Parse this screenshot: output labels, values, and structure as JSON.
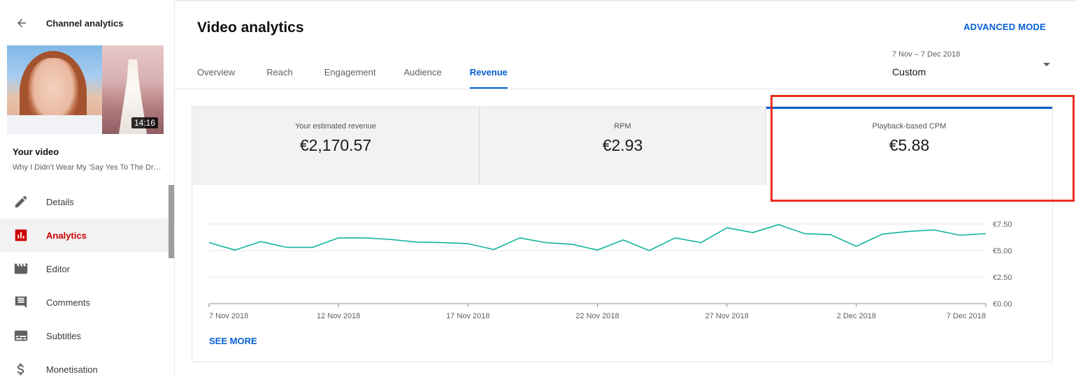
{
  "sidebar": {
    "title": "Channel analytics",
    "thumbnail_duration": "14:16",
    "your_video_label": "Your video",
    "video_title": "Why I Didn't Wear My 'Say Yes To The Dress' Dress",
    "items": [
      {
        "label": "Details",
        "icon": "pencil-icon"
      },
      {
        "label": "Analytics",
        "icon": "analytics-icon",
        "active": true
      },
      {
        "label": "Editor",
        "icon": "clapper-icon"
      },
      {
        "label": "Comments",
        "icon": "comment-icon"
      },
      {
        "label": "Subtitles",
        "icon": "subtitles-icon"
      },
      {
        "label": "Monetisation",
        "icon": "dollar-icon"
      }
    ]
  },
  "header": {
    "title": "Video analytics",
    "advanced_mode": "ADVANCED MODE",
    "tabs": [
      {
        "label": "Overview"
      },
      {
        "label": "Reach"
      },
      {
        "label": "Engagement"
      },
      {
        "label": "Audience"
      },
      {
        "label": "Revenue",
        "active": true
      }
    ],
    "date_range": "7 Nov – 7 Dec 2018",
    "date_value": "Custom"
  },
  "metrics": [
    {
      "label": "Your estimated revenue",
      "value": "€2,170.57"
    },
    {
      "label": "RPM",
      "value": "€2.93"
    },
    {
      "label": "Playback-based CPM",
      "value": "€5.88",
      "selected": true
    }
  ],
  "colors": {
    "accent": "#065fd4",
    "line": "#12b59c",
    "highlight": "#e8301f",
    "active_nav": "#cc0000"
  },
  "chart_data": {
    "type": "line",
    "title": "",
    "x": [
      "7 Nov",
      "8 Nov",
      "9 Nov",
      "10 Nov",
      "11 Nov",
      "12 Nov",
      "13 Nov",
      "14 Nov",
      "15 Nov",
      "16 Nov",
      "17 Nov",
      "18 Nov",
      "19 Nov",
      "20 Nov",
      "21 Nov",
      "22 Nov",
      "23 Nov",
      "24 Nov",
      "25 Nov",
      "26 Nov",
      "27 Nov",
      "28 Nov",
      "29 Nov",
      "30 Nov",
      "1 Dec",
      "2 Dec",
      "3 Dec",
      "4 Dec",
      "5 Dec",
      "6 Dec",
      "7 Dec"
    ],
    "series": [
      {
        "values": [
          5.75,
          5.05,
          5.85,
          5.3,
          5.3,
          6.2,
          6.2,
          6.05,
          5.8,
          5.75,
          5.65,
          5.1,
          6.2,
          5.75,
          5.6,
          5.05,
          6.0,
          5.0,
          6.2,
          5.75,
          7.15,
          6.7,
          7.45,
          6.6,
          6.5,
          5.4,
          6.55,
          6.8,
          6.95,
          6.45,
          6.6
        ]
      }
    ],
    "xtick_labels": [
      "7 Nov 2018",
      "12 Nov 2018",
      "17 Nov 2018",
      "22 Nov 2018",
      "27 Nov 2018",
      "2 Dec 2018",
      "7 Dec 2018"
    ],
    "xtick_index": [
      0,
      5,
      10,
      15,
      20,
      25,
      30
    ],
    "ytick_values": [
      0,
      2.5,
      5,
      7.5
    ],
    "ytick_labels": [
      "€0.00",
      "€2.50",
      "€5.00",
      "€7.50"
    ],
    "ylim": [
      0,
      7.5
    ],
    "grid": true
  },
  "see_more": "SEE MORE"
}
